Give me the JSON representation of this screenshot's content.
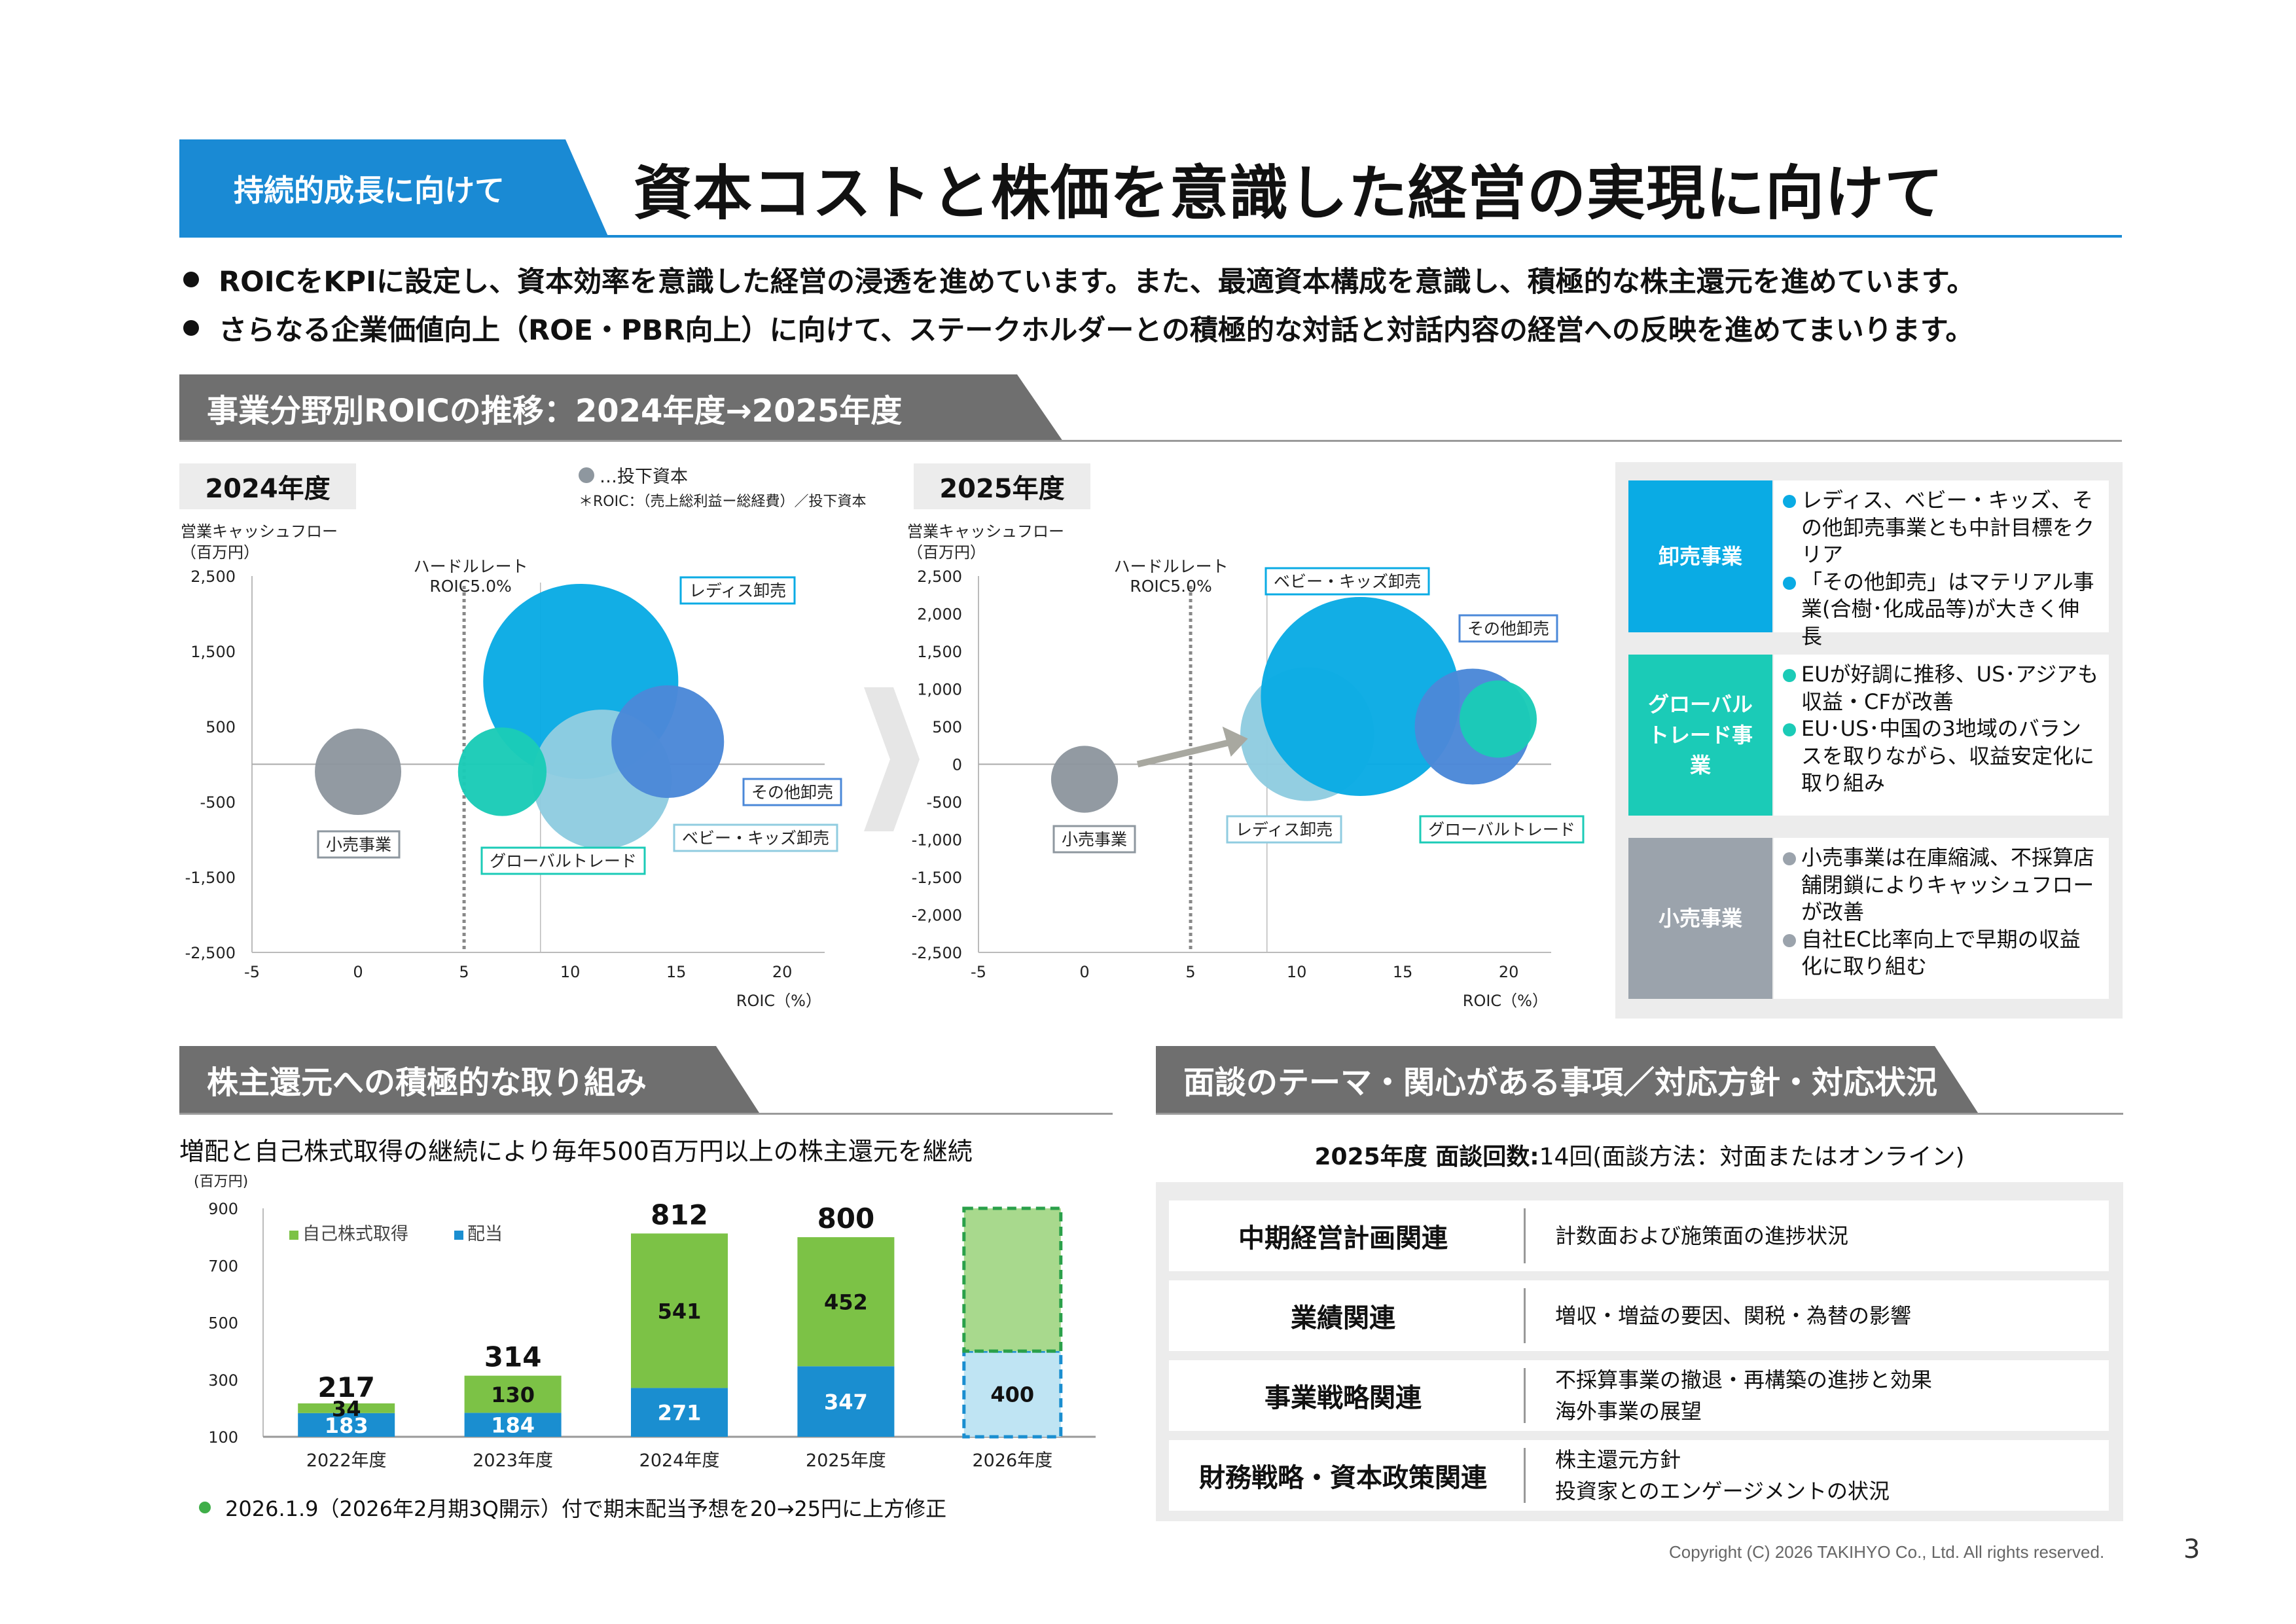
{
  "header": {
    "tag": "持続的成長に向けて",
    "title": "資本コストと株価を意識した経営の実現に向けて"
  },
  "bullets": [
    "ROICをKPIに設定し、資本効率を意識した経営の浸透を進めています。また、最適資本構成を意識し、積極的な株主還元を進めています。",
    "さらなる企業価値向上（ROE・PBR向上）に向けて、ステークホルダーとの積極的な対話と対話内容の経営への反映を進めてまいります。"
  ],
  "roic_section": {
    "title": "事業分野別ROICの推移：2024年度→2025年度",
    "legend": "…投下資本",
    "formula": "＊ROIC：（売上総利益ー総経費）／投下資本"
  },
  "segments": [
    {
      "label": "卸売事業",
      "color": "#0aabe4",
      "dot_color": "#0aabe4",
      "items": [
        "レディス、ベビー・キッズ、その他卸売事業とも中計目標をクリア",
        "「その他卸売」はマテリアル事業(合樹･化成品等)が大きく伸長"
      ]
    },
    {
      "label": "グローバルトレード事業",
      "color": "#1bcbb7",
      "dot_color": "#1bcbb7",
      "items": [
        "EUが好調に推移、US･アジアも収益・CFが改善",
        "EU･US･中国の3地域のバランスを取りながら、収益安定化に取り組み"
      ]
    },
    {
      "label": "小売事業",
      "color": "#9ba3ac",
      "dot_color": "#9ba3ac",
      "items": [
        "小売事業は在庫縮減、不採算店舗閉鎖によりキャッシュフローが改善",
        "自社EC比率向上で早期の収益化に取り組む"
      ]
    }
  ],
  "shareholder_section": {
    "title": "株主還元への積極的な取り組み",
    "subtitle": "増配と自己株式取得の継続により毎年500百万円以上の株主還元を継続",
    "note": "2026.1.9（2026年2月期3Q開示）付で期末配当予想を20→25円に上方修正"
  },
  "meeting_section": {
    "title": "面談のテーマ・関心がある事項／対応方針・対応状況",
    "count_label": "2025年度 面談回数:",
    "count_value": "14回(面談方法：対面またはオンライン)",
    "rows": [
      {
        "category": "中期経営計画関連",
        "lines": [
          "計数面および施策面の進捗状況"
        ]
      },
      {
        "category": "業績関連",
        "lines": [
          "増収・増益の要因、関税・為替の影響"
        ]
      },
      {
        "category": "事業戦略関連",
        "lines": [
          "不採算事業の撤退・再構築の進捗と効果",
          "海外事業の展望"
        ]
      },
      {
        "category": "財務戦略・資本政策関連",
        "lines": [
          "株主還元方針",
          "投資家とのエンゲージメントの状況"
        ]
      }
    ]
  },
  "footer": {
    "copyright": "Copyright (C) 2026 TAKIHYO Co., Ltd. All rights reserved.",
    "page": "3"
  },
  "chart_data": [
    {
      "type": "scatter",
      "subtype": "bubble",
      "title": "2024年度",
      "xlabel": "ROIC（%）",
      "ylabel": "営業キャッシュフロー（百万円）",
      "xlim": [
        -5,
        22
      ],
      "ylim": [
        -2500,
        2500
      ],
      "xticks": [
        -5,
        0,
        5,
        10,
        15,
        20
      ],
      "yticks": [
        2500,
        1500,
        500,
        -500,
        -1500,
        -2500
      ],
      "hurdle": {
        "x": 5,
        "label": "ハードルレート\nROIC5.0%"
      },
      "series": [
        {
          "name": "小売事業",
          "x": 0,
          "y": -100,
          "size": 1,
          "color": "#8e979f"
        },
        {
          "name": "グローバルトレード",
          "x": 6.8,
          "y": -100,
          "size": 1.05,
          "color": "#1bcbb7"
        },
        {
          "name": "レディス卸売",
          "x": 10.5,
          "y": 1100,
          "size": 5.1,
          "color": "#0aabe4"
        },
        {
          "name": "ベビー・キッズ卸売",
          "x": 11.5,
          "y": -200,
          "size": 2.6,
          "color": "#90cce0"
        },
        {
          "name": "その他卸売",
          "x": 14.6,
          "y": 300,
          "size": 1.7,
          "color": "#4b88d8"
        }
      ]
    },
    {
      "type": "scatter",
      "subtype": "bubble",
      "title": "2025年度",
      "xlabel": "ROIC（%）",
      "ylabel": "営業キャッシュフロー（百万円）",
      "xlim": [
        -5,
        22
      ],
      "ylim": [
        -2500,
        2500
      ],
      "xticks": [
        -5,
        0,
        5,
        10,
        15,
        20
      ],
      "yticks": [
        2500,
        2000,
        1500,
        1000,
        500,
        0,
        -500,
        -1000,
        -1500,
        -2000,
        -2500
      ],
      "hurdle": {
        "x": 5,
        "label": "ハードルレート\nROIC5.0%"
      },
      "series": [
        {
          "name": "小売事業",
          "x": 0,
          "y": -200,
          "size": 0.6,
          "color": "#8e979f"
        },
        {
          "name": "レディス卸売",
          "x": 13,
          "y": 900,
          "size": 5.3,
          "color": "#0aabe4"
        },
        {
          "name": "ベビー・キッズ卸売",
          "x": 10.5,
          "y": 400,
          "size": 2.4,
          "color": "#90cce0"
        },
        {
          "name": "その他卸売",
          "x": 18.3,
          "y": 500,
          "size": 1.8,
          "color": "#4b88d8"
        },
        {
          "name": "グローバルトレード",
          "x": 19.5,
          "y": 600,
          "size": 0.8,
          "color": "#1bcbb7"
        }
      ]
    },
    {
      "type": "bar",
      "subtype": "stacked",
      "unit": "(百万円)",
      "categories": [
        "2022年度",
        "2023年度",
        "2024年度",
        "2025年度",
        "2026年度"
      ],
      "ylim": [
        100,
        900
      ],
      "yticks": [
        100,
        300,
        500,
        700,
        900
      ],
      "series": [
        {
          "name": "配当",
          "values": [
            183,
            184,
            271,
            347,
            400
          ],
          "color": "#1a8ed0"
        },
        {
          "name": "自己株式取得",
          "values": [
            34,
            130,
            541,
            452,
            null
          ],
          "color": "#7cc246"
        }
      ],
      "totals": [
        217,
        314,
        812,
        800,
        null
      ],
      "forecast_index": 4
    }
  ]
}
